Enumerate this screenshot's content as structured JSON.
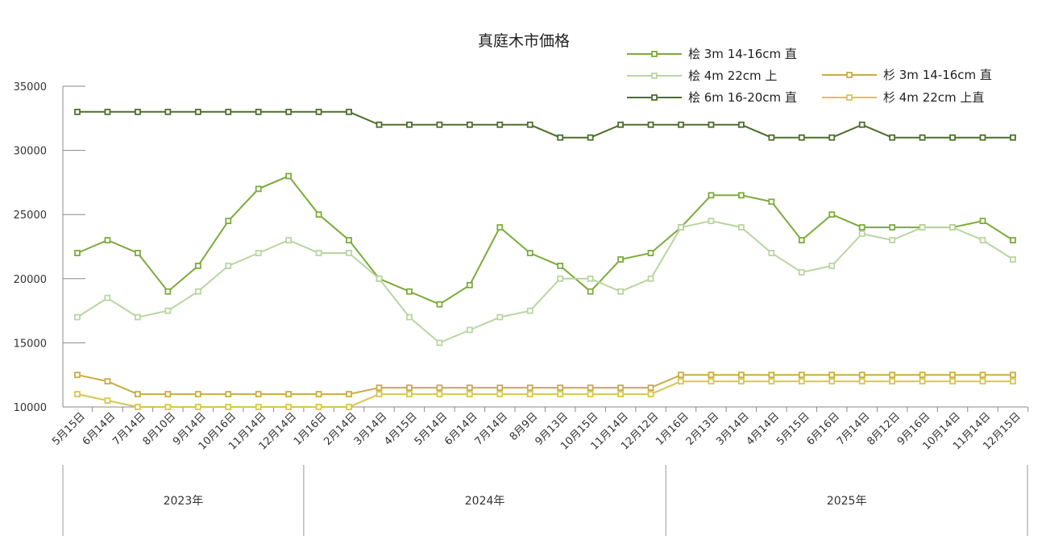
{
  "chart_data": {
    "type": "line",
    "title": "真庭木市価格",
    "xlabel": "",
    "ylabel": "",
    "ylim": [
      10000,
      35000
    ],
    "yticks": [
      10000,
      15000,
      20000,
      25000,
      30000,
      35000
    ],
    "grid": false,
    "legend_position": "top-right",
    "categories": [
      "5月15日",
      "6月14日",
      "7月14日",
      "8月10日",
      "9月14日",
      "10月16日",
      "11月14日",
      "12月14日",
      "1月16日",
      "2月14日",
      "3月14日",
      "4月15日",
      "5月14日",
      "6月14日",
      "7月14日",
      "8月9日",
      "9月13日",
      "10月15日",
      "11月14日",
      "12月12日",
      "1月16日",
      "2月13日",
      "3月14日",
      "4月14日",
      "5月15日",
      "6月16日",
      "7月14日",
      "8月12日",
      "9月16日",
      "10月14日",
      "11月14日",
      "12月15日"
    ],
    "year_groups": [
      {
        "label": "2023年",
        "start": 0,
        "end": 7
      },
      {
        "label": "2024年",
        "start": 8,
        "end": 19
      },
      {
        "label": "2025年",
        "start": 20,
        "end": 31
      }
    ],
    "series": [
      {
        "name": "桧 3m 14-16cm 直",
        "color": "#7cab3c",
        "values": [
          22000,
          23000,
          22000,
          19000,
          21000,
          24500,
          27000,
          28000,
          25000,
          23000,
          20000,
          19000,
          18000,
          19500,
          24000,
          22000,
          21000,
          19000,
          21500,
          22000,
          24000,
          26500,
          26500,
          26000,
          23000,
          25000,
          24000,
          24000,
          24000,
          24000,
          24500,
          23000
        ]
      },
      {
        "name": "桧 4m 22cm 上",
        "color": "#b9d5a0",
        "values": [
          17000,
          18500,
          17000,
          17500,
          19000,
          21000,
          22000,
          23000,
          22000,
          22000,
          20000,
          17000,
          15000,
          16000,
          17000,
          17500,
          20000,
          20000,
          19000,
          20000,
          24000,
          24500,
          24000,
          22000,
          20500,
          21000,
          23500,
          23000,
          24000,
          24000,
          23000,
          21500
        ]
      },
      {
        "name": "桧 6m 16-20cm 直",
        "color": "#4e6e2a",
        "values": [
          33000,
          33000,
          33000,
          33000,
          33000,
          33000,
          33000,
          33000,
          33000,
          33000,
          32000,
          32000,
          32000,
          32000,
          32000,
          32000,
          31000,
          31000,
          32000,
          32000,
          32000,
          32000,
          32000,
          31000,
          31000,
          31000,
          32000,
          31000,
          31000,
          31000,
          31000,
          31000
        ]
      },
      {
        "name": "杉 3m 14-16cm 直",
        "color": "#c9ac45",
        "values": [
          12500,
          12000,
          11000,
          11000,
          11000,
          11000,
          11000,
          11000,
          11000,
          11000,
          11500,
          11500,
          11500,
          11500,
          11500,
          11500,
          11500,
          11500,
          11500,
          11500,
          12500,
          12500,
          12500,
          12500,
          12500,
          12500,
          12500,
          12500,
          12500,
          12500,
          12500,
          12500
        ]
      },
      {
        "name": "杉 4m 22cm 上直",
        "color": "#d6c650",
        "values": [
          11000,
          10500,
          10000,
          10000,
          10000,
          10000,
          10000,
          10000,
          10000,
          10000,
          11000,
          11000,
          11000,
          11000,
          11000,
          11000,
          11000,
          11000,
          11000,
          11000,
          12000,
          12000,
          12000,
          12000,
          12000,
          12000,
          12000,
          12000,
          12000,
          12000,
          12000,
          12000
        ]
      }
    ]
  }
}
